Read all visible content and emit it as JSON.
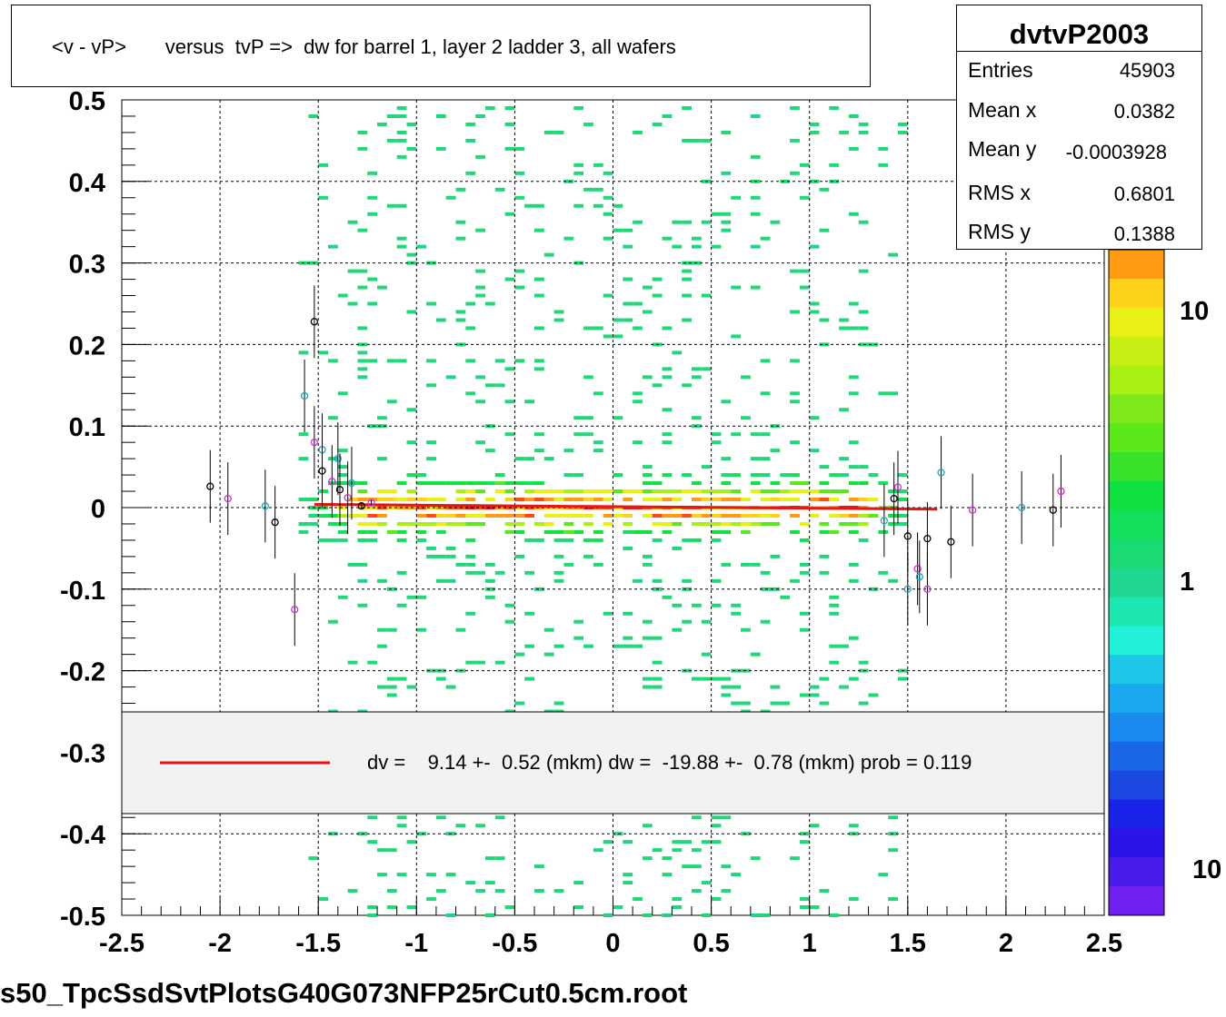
{
  "title": "<v - vP>       versus  tvP =>  dw for barrel 1, layer 2 ladder 3, all wafers",
  "stats": {
    "name": "dvtvP2003",
    "rows": [
      {
        "label": "Entries",
        "value": "45903"
      },
      {
        "label": "Mean x",
        "value": "0.0382"
      },
      {
        "label": "Mean y",
        "value": "-0.0003928"
      },
      {
        "label": "RMS x",
        "value": "0.6801"
      },
      {
        "label": "RMS y",
        "value": "0.1388"
      }
    ]
  },
  "legend": {
    "text": "dv =    9.14 +-  0.52 (mkm) dw =  -19.88 +-  0.78 (mkm) prob = 0.119",
    "line_color": "#e8160f"
  },
  "footer": "s50_TpcSsdSvtPlotsG40G073NFP25rCut0.5cm.root",
  "colors": {
    "fit_line": "#e8160f",
    "grid": "#000000",
    "points_black": "#000000",
    "points_magenta": "#d42bd4",
    "points_cyan": "#1aa8b8"
  },
  "chart_data": {
    "type": "heatmap",
    "xlim": [
      -2.5,
      2.5
    ],
    "ylim": [
      -0.5,
      0.5
    ],
    "x_ticks": [
      "-2.5",
      "-2",
      "-1.5",
      "-1",
      "-0.5",
      "0",
      "0.5",
      "1",
      "1.5",
      "2",
      "2.5"
    ],
    "y_ticks": [
      "0.5",
      "0.4",
      "0.3",
      "0.2",
      "0.1",
      "0",
      "-0.1",
      "-0.2",
      "-0.3",
      "-0.4",
      "-0.5"
    ],
    "grid": true,
    "colorbar_labels": [
      "10",
      "1",
      "10"
    ],
    "density": {
      "x_range": [
        -1.6,
        1.5
      ],
      "core_y": 0.0,
      "note_sigma": 0.139
    },
    "fit": {
      "x": [
        -1.52,
        1.65
      ],
      "y": [
        0.004,
        -0.002
      ]
    },
    "profile_points": [
      {
        "x": -2.05,
        "y": 0.026
      },
      {
        "x": -1.96,
        "y": 0.011
      },
      {
        "x": -1.77,
        "y": 0.002
      },
      {
        "x": -1.72,
        "y": -0.018
      },
      {
        "x": -1.62,
        "y": -0.125
      },
      {
        "x": -1.57,
        "y": 0.137
      },
      {
        "x": -1.52,
        "y": 0.228
      },
      {
        "x": -1.52,
        "y": 0.08
      },
      {
        "x": -1.48,
        "y": 0.071
      },
      {
        "x": -1.48,
        "y": 0.045
      },
      {
        "x": -1.43,
        "y": 0.032
      },
      {
        "x": -1.4,
        "y": 0.06
      },
      {
        "x": -1.39,
        "y": 0.022
      },
      {
        "x": -1.35,
        "y": 0.012
      },
      {
        "x": -1.33,
        "y": 0.03
      },
      {
        "x": -1.28,
        "y": 0.002
      },
      {
        "x": -1.23,
        "y": 0.006
      },
      {
        "x": 1.38,
        "y": -0.016
      },
      {
        "x": 1.43,
        "y": 0.011
      },
      {
        "x": 1.45,
        "y": 0.025
      },
      {
        "x": 1.5,
        "y": -0.1
      },
      {
        "x": 1.5,
        "y": -0.035
      },
      {
        "x": 1.55,
        "y": -0.075
      },
      {
        "x": 1.56,
        "y": -0.085
      },
      {
        "x": 1.6,
        "y": -0.038
      },
      {
        "x": 1.6,
        "y": -0.1
      },
      {
        "x": 1.67,
        "y": 0.043
      },
      {
        "x": 1.72,
        "y": -0.042
      },
      {
        "x": 1.83,
        "y": -0.003
      },
      {
        "x": 2.08,
        "y": 0.0
      },
      {
        "x": 2.24,
        "y": -0.003
      },
      {
        "x": 2.28,
        "y": 0.02
      }
    ]
  }
}
